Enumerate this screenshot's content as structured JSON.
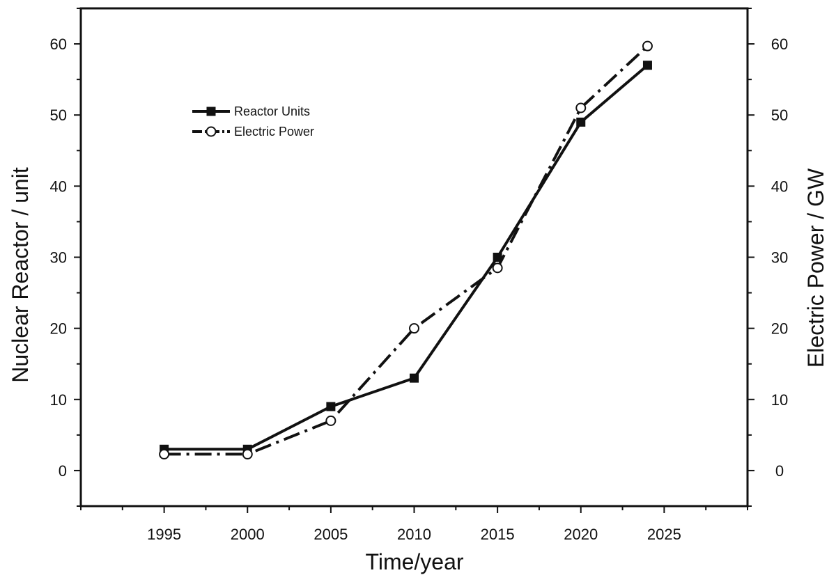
{
  "chart_data": {
    "type": "line",
    "title": "",
    "xlabel": "Time/year",
    "ylabel": "Nuclear Reactor / unit",
    "y2label": "Electric Power / GW",
    "xlim": [
      1990,
      2030
    ],
    "ylim": [
      -5,
      65
    ],
    "y2lim": [
      -5,
      65
    ],
    "x_ticks": [
      1995,
      2000,
      2005,
      2010,
      2015,
      2020,
      2025
    ],
    "y_ticks": [
      0,
      10,
      20,
      30,
      40,
      50,
      60
    ],
    "y2_ticks": [
      0,
      10,
      20,
      30,
      40,
      50,
      60
    ],
    "grid": false,
    "legend_position": "upper-left",
    "series": [
      {
        "name": "Reactor Units",
        "axis": "left",
        "marker": "filled-square",
        "line_style": "solid",
        "color": "#111111",
        "x": [
          1995,
          2000,
          2005,
          2010,
          2015,
          2020,
          2024
        ],
        "y": [
          3,
          3,
          9,
          13,
          30,
          49,
          57
        ]
      },
      {
        "name": "Electric Power",
        "axis": "right",
        "marker": "open-circle",
        "line_style": "dash-dot",
        "color": "#111111",
        "x": [
          1995,
          2000,
          2005,
          2010,
          2015,
          2020,
          2024
        ],
        "y": [
          2.3,
          2.3,
          7,
          20,
          28.5,
          51,
          59.7
        ]
      }
    ]
  }
}
